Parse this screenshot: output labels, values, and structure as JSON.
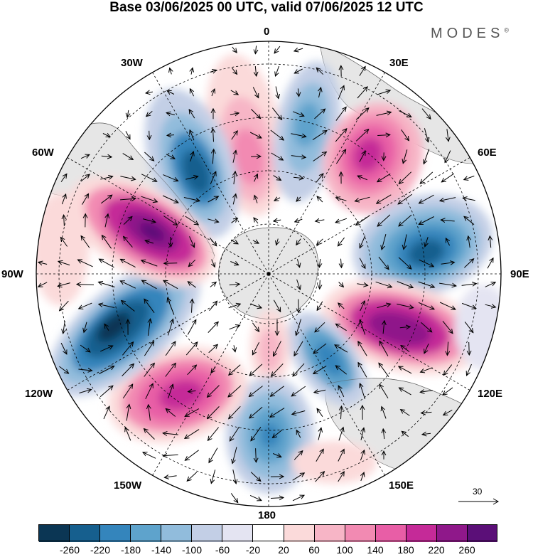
{
  "title": "Base 03/06/2025 00 UTC, valid 07/06/2025 12 UTC",
  "brand": "MODES",
  "brand_mark": "®",
  "longitude_labels": {
    "lon_0": "0",
    "lon_30e": "30E",
    "lon_60e": "60E",
    "lon_90e": "90E",
    "lon_120e": "120E",
    "lon_150e": "150E",
    "lon_180": "180",
    "lon_150w": "150W",
    "lon_120w": "120W",
    "lon_90w": "90W",
    "lon_60w": "60W",
    "lon_30w": "30W"
  },
  "reference_vector": {
    "value": "30"
  },
  "colorbar": {
    "colors": [
      "#0b3654",
      "#165f8e",
      "#3485bc",
      "#5ea3cc",
      "#91bcdc",
      "#c3cfe6",
      "#e4e4f2",
      "#ffffff",
      "#fbdada",
      "#f7b5c6",
      "#f28ab2",
      "#e85ea6",
      "#c52a98",
      "#8f188a",
      "#5b0f78"
    ],
    "tick_labels": [
      "-260",
      "-220",
      "-180",
      "-140",
      "-100",
      "-60",
      "-20",
      "20",
      "60",
      "100",
      "140",
      "180",
      "220",
      "260"
    ]
  },
  "colors": {
    "positive_extreme": "#5b0f78",
    "negative_extreme": "#0b3654",
    "land": "#e6e6e6",
    "background": "#ffffff"
  }
}
